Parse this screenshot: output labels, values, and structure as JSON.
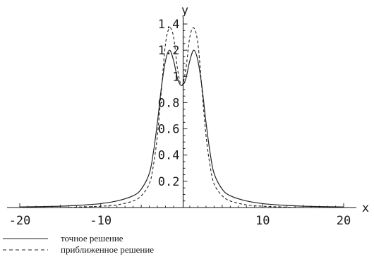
{
  "chart_data": {
    "type": "line",
    "xlabel": "x",
    "ylabel": "y",
    "xlim": [
      -20,
      20
    ],
    "ylim": [
      0,
      1.4
    ],
    "x_ticks": [
      {
        "value": -20,
        "label": "-20"
      },
      {
        "value": -10,
        "label": "-10"
      },
      {
        "value": 10,
        "label": "10"
      },
      {
        "value": 20,
        "label": "20"
      }
    ],
    "y_ticks": [
      {
        "value": 0.2,
        "label": "0.2"
      },
      {
        "value": 0.4,
        "label": "0.4"
      },
      {
        "value": 0.6,
        "label": "0.6"
      },
      {
        "value": 0.8,
        "label": "0.8"
      },
      {
        "value": 1.0,
        "label": "1"
      },
      {
        "value": 1.2,
        "label": "1.2"
      },
      {
        "value": 1.4,
        "label": "1.4"
      }
    ],
    "grid": false,
    "legend_position": "bottom-left",
    "series": [
      {
        "name": "точное решение",
        "style": "solid",
        "x": [
          -20,
          -15,
          -12,
          -10,
          -8,
          -6,
          -5,
          -4,
          -3.5,
          -3,
          -2.5,
          -2,
          -1.5,
          -1,
          -0.5,
          0,
          0.5,
          1,
          1.5,
          2,
          2.5,
          3,
          3.5,
          4,
          5,
          6,
          8,
          10,
          12,
          15,
          20
        ],
        "y": [
          0.005,
          0.01,
          0.02,
          0.03,
          0.05,
          0.09,
          0.14,
          0.26,
          0.42,
          0.65,
          0.92,
          1.12,
          1.2,
          1.12,
          0.98,
          0.93,
          0.98,
          1.12,
          1.2,
          1.12,
          0.92,
          0.65,
          0.42,
          0.26,
          0.14,
          0.09,
          0.05,
          0.03,
          0.02,
          0.01,
          0.005
        ]
      },
      {
        "name": "приближенное решение",
        "style": "dashed",
        "x": [
          -20,
          -15,
          -12,
          -10,
          -8,
          -6,
          -5,
          -4,
          -3.5,
          -3,
          -2.5,
          -2,
          -1.5,
          -1,
          -0.5,
          0,
          0.5,
          1,
          1.5,
          2,
          2.5,
          3,
          3.5,
          4,
          5,
          6,
          8,
          10,
          12,
          15,
          20
        ],
        "y": [
          0.0,
          0.0,
          0.005,
          0.01,
          0.02,
          0.05,
          0.09,
          0.18,
          0.32,
          0.55,
          0.9,
          1.25,
          1.37,
          1.3,
          1.05,
          0.93,
          1.05,
          1.3,
          1.37,
          1.25,
          0.9,
          0.55,
          0.32,
          0.18,
          0.09,
          0.05,
          0.02,
          0.01,
          0.005,
          0.0,
          0.0
        ]
      }
    ],
    "colors": {
      "solid": "#222222",
      "dashed": "#222222",
      "axis": "#111111"
    }
  }
}
